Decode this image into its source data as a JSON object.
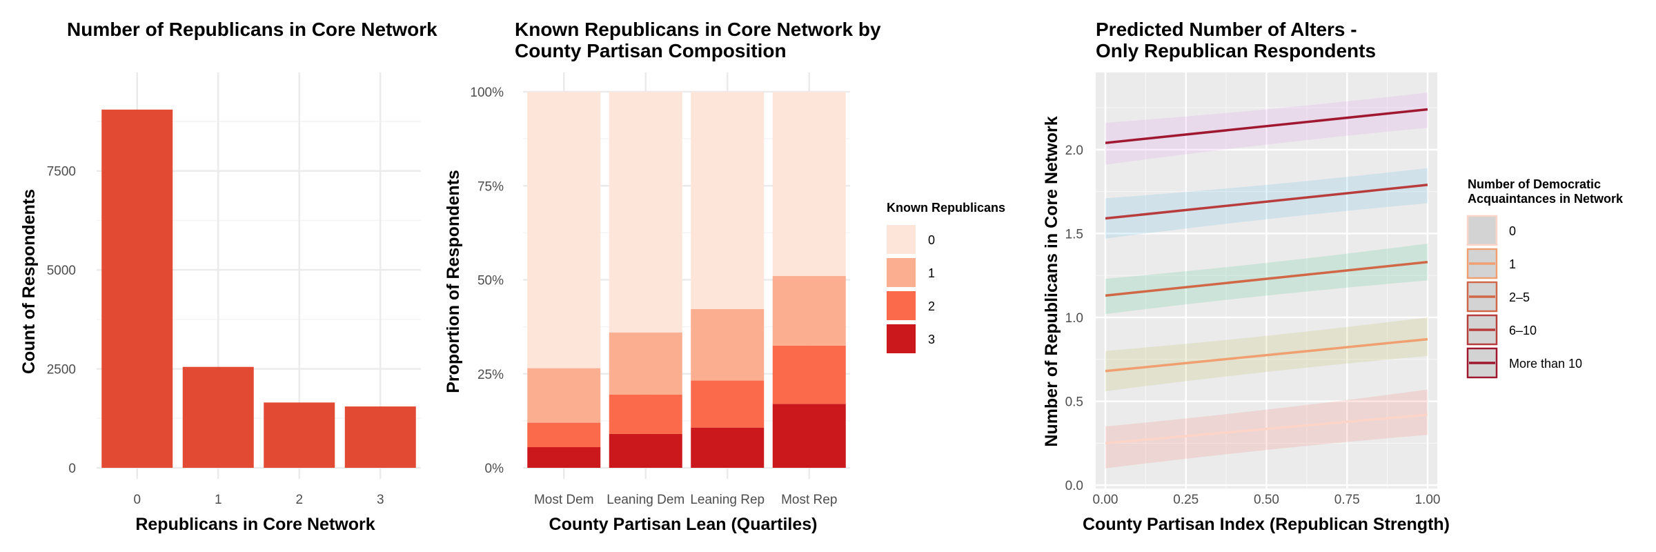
{
  "colors": {
    "bar": "#E34A33",
    "reds": [
      "#FEE5D9",
      "#FCAE91",
      "#FB6A4A",
      "#CB181D"
    ],
    "line_colors": [
      "#FCD5C8",
      "#F0A070",
      "#D06848",
      "#B83C3C",
      "#A01830"
    ],
    "band_colors": [
      "#F8766D",
      "#B8B84E",
      "#40C08C",
      "#5AB8E8",
      "#E08AF0"
    ],
    "panel_bg": "#EBEBEB",
    "grid_light": "#EBEBEB"
  },
  "chart_data": [
    {
      "type": "bar",
      "title": "Number of Republicans in Core Network",
      "xlabel": "Republicans in Core Network",
      "ylabel": "Count of Respondents",
      "categories": [
        "0",
        "1",
        "2",
        "3"
      ],
      "values": [
        9050,
        2550,
        1650,
        1550
      ],
      "ylim": [
        0,
        9500
      ],
      "yticks": [
        0,
        2500,
        5000,
        7500
      ],
      "ytick_labels": [
        "0",
        "2500",
        "5000",
        "7500"
      ]
    },
    {
      "type": "bar",
      "stacked": true,
      "title_lines": [
        "Known Republicans in Core Network by",
        "County Partisan Composition"
      ],
      "xlabel": "County Partisan Lean (Quartiles)",
      "ylabel": "Proportion of Respondents",
      "categories": [
        "Most Dem",
        "Leaning Dem",
        "Leaning Rep",
        "Most Rep"
      ],
      "legend_title": "Known Republicans",
      "series": [
        {
          "name": "0",
          "values": [
            0.735,
            0.64,
            0.578,
            0.49
          ]
        },
        {
          "name": "1",
          "values": [
            0.145,
            0.165,
            0.19,
            0.185
          ]
        },
        {
          "name": "2",
          "values": [
            0.065,
            0.105,
            0.125,
            0.155
          ]
        },
        {
          "name": "3",
          "values": [
            0.055,
            0.09,
            0.107,
            0.17
          ]
        }
      ],
      "ylim": [
        0,
        1
      ],
      "yticks": [
        0,
        0.25,
        0.5,
        0.75,
        1
      ],
      "ytick_labels": [
        "0%",
        "25%",
        "50%",
        "75%",
        "100%"
      ]
    },
    {
      "type": "line",
      "title_lines": [
        "Predicted Number of Alters -",
        "Only Republican Respondents"
      ],
      "xlabel": "County Partisan Index (Republican Strength)",
      "ylabel": "Number of Republicans in Core Network",
      "legend_title_lines": [
        "Number of Democratic",
        "Acquaintances in Network"
      ],
      "xlim": [
        -0.03,
        1.03
      ],
      "ylim": [
        -0.02,
        2.46
      ],
      "xticks": [
        0,
        0.25,
        0.5,
        0.75,
        1
      ],
      "xtick_labels": [
        "0.00",
        "0.25",
        "0.50",
        "0.75",
        "1.00"
      ],
      "yticks": [
        0,
        0.5,
        1,
        1.5,
        2
      ],
      "ytick_labels": [
        "0.0",
        "0.5",
        "1.0",
        "1.5",
        "2.0"
      ],
      "series": [
        {
          "name": "0",
          "x": [
            0,
            1
          ],
          "y": [
            0.25,
            0.42
          ],
          "lower": [
            0.1,
            0.3
          ],
          "upper": [
            0.35,
            0.57
          ]
        },
        {
          "name": "1",
          "x": [
            0,
            1
          ],
          "y": [
            0.68,
            0.87
          ],
          "lower": [
            0.56,
            0.77
          ],
          "upper": [
            0.8,
            1.0
          ]
        },
        {
          "name": "2–5",
          "x": [
            0,
            1
          ],
          "y": [
            1.13,
            1.33
          ],
          "lower": [
            1.02,
            1.22
          ],
          "upper": [
            1.23,
            1.44
          ]
        },
        {
          "name": "6–10",
          "x": [
            0,
            1
          ],
          "y": [
            1.59,
            1.79
          ],
          "lower": [
            1.47,
            1.68
          ],
          "upper": [
            1.71,
            1.89
          ]
        },
        {
          "name": "More than 10",
          "x": [
            0,
            1
          ],
          "y": [
            2.04,
            2.24
          ],
          "lower": [
            1.91,
            2.13
          ],
          "upper": [
            2.16,
            2.34
          ]
        }
      ]
    }
  ]
}
